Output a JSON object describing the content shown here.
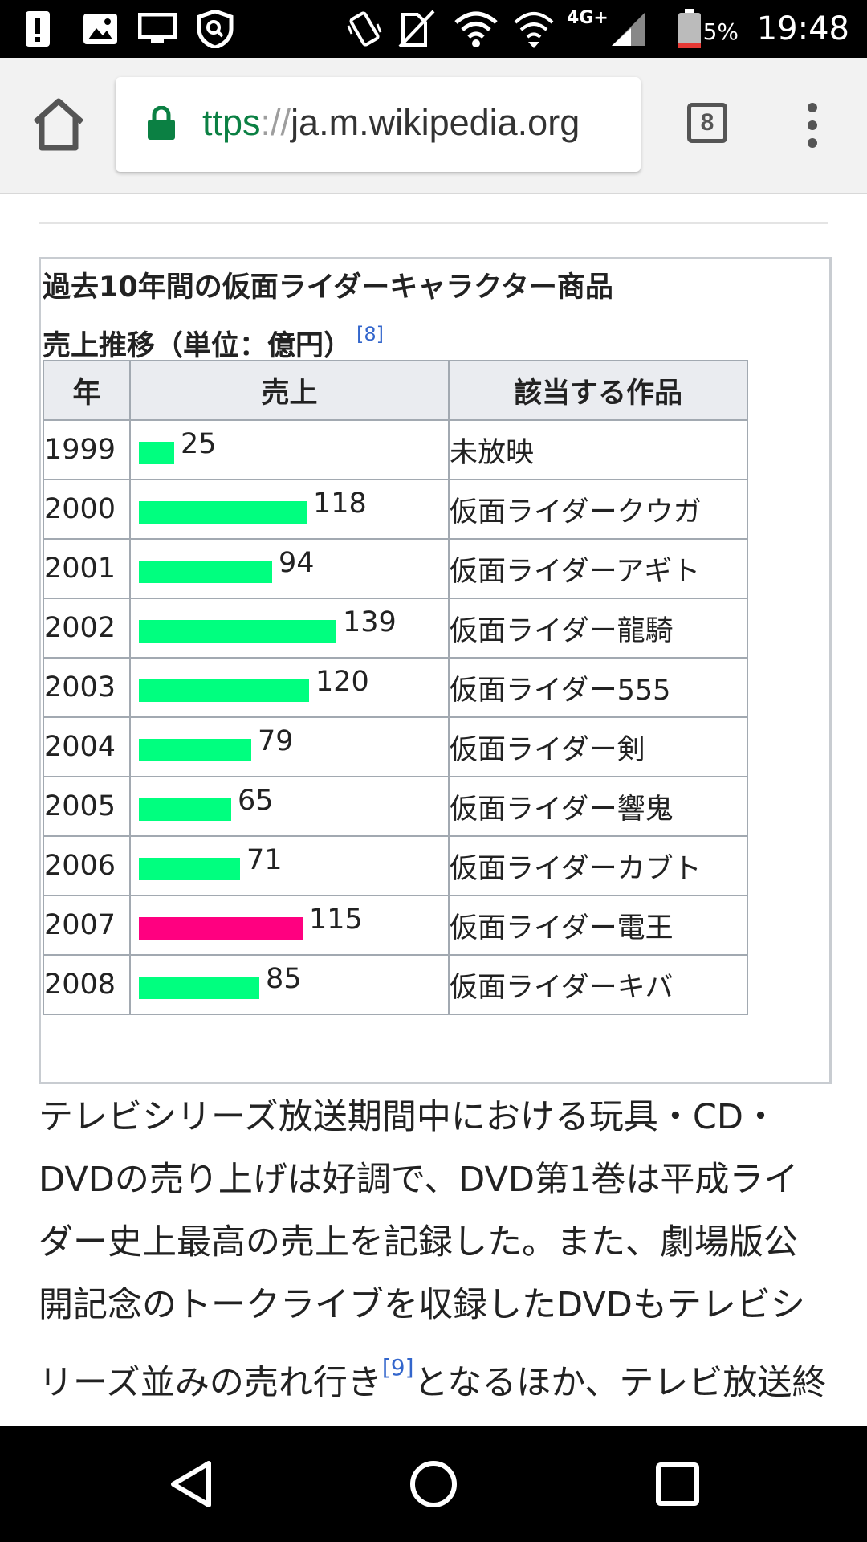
{
  "status_bar": {
    "time": "19:48",
    "battery_percent": "5%",
    "network": "4G+",
    "icons": [
      "alert-icon",
      "image-icon",
      "cast-icon",
      "vpn-shield-icon",
      "vibrate-icon",
      "no-sim-icon",
      "wifi-icon",
      "wifi-icon",
      "signal-icon",
      "battery-low-icon"
    ]
  },
  "browser": {
    "url_scheme": "ttps",
    "url_sep": "://",
    "url_host": "ja.m.wikipedia.org",
    "tab_count": "8",
    "colors": {
      "secure": "#0b8043",
      "toolbar": "#f2f2f2"
    }
  },
  "chart": {
    "caption_line1": "過去10年間の仮面ライダーキャラクター商品",
    "caption_line2": "売上推移（単位：億円）",
    "caption_ref": "[8]",
    "headers": {
      "year": "年",
      "sales": "売上",
      "work": "該当する作品"
    },
    "colors": {
      "bar": "#00ff7f",
      "highlight": "#ff0080"
    }
  },
  "chart_data": {
    "type": "bar",
    "title": "過去10年間の仮面ライダーキャラクター商品 売上推移（単位：億円）",
    "categories": [
      "1999",
      "2000",
      "2001",
      "2002",
      "2003",
      "2004",
      "2005",
      "2006",
      "2007",
      "2008"
    ],
    "values": [
      25,
      118,
      94,
      139,
      120,
      79,
      65,
      71,
      115,
      85
    ],
    "works": [
      "未放映",
      "仮面ライダークウガ",
      "仮面ライダーアギト",
      "仮面ライダー龍騎",
      "仮面ライダー555",
      "仮面ライダー剣",
      "仮面ライダー響鬼",
      "仮面ライダーカブト",
      "仮面ライダー電王",
      "仮面ライダーキバ"
    ],
    "highlight_index": 8
  },
  "article": {
    "paragraph_before_ref": "テレビシリーズ放送期間中における玩具・CD・DVDの売り上げは好調で、DVD第1巻は平成ライダー史上最高の売上を記録した。また、劇場版公開記念のトークライブを収録したDVDもテレビシリーズ並みの売れ行き",
    "ref": "[9]",
    "paragraph_after_ref": "となるほか、テレビ放送終了後も関連グッズの"
  },
  "nav": {
    "icons": [
      "back-icon",
      "home-circle-icon",
      "recents-icon"
    ]
  }
}
